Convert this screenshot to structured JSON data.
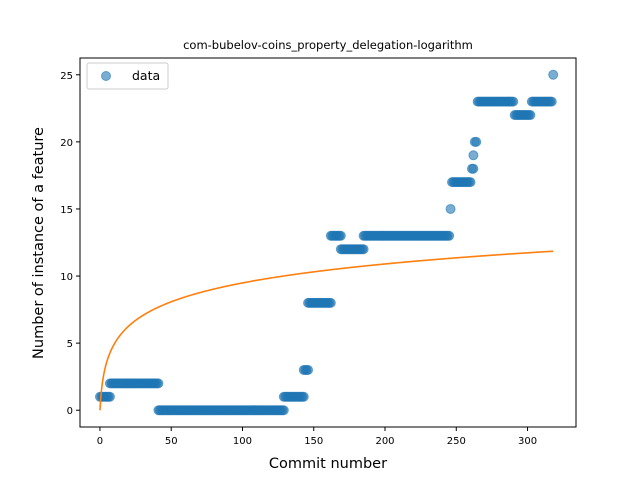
{
  "chart_data": {
    "type": "scatter",
    "title": "com-bubelov-coins_property_delegation-logarithm",
    "xlabel": "Commit number",
    "ylabel": "Number of instance of a feature",
    "xlim": [
      -14,
      334
    ],
    "ylim": [
      -1.25,
      26.25
    ],
    "xticks": [
      0,
      50,
      100,
      150,
      200,
      250,
      300
    ],
    "yticks": [
      0,
      5,
      10,
      15,
      20,
      25
    ],
    "grid": false,
    "legend_position": "top-left",
    "legend": [
      "data"
    ],
    "series": [
      {
        "name": "data",
        "kind": "scatter",
        "color": "#1f77b4",
        "segments": [
          {
            "x_start": 0,
            "x_end": 7,
            "y": 1
          },
          {
            "x_start": 7,
            "x_end": 41,
            "y": 2
          },
          {
            "x_start": 41,
            "x_end": 129,
            "y": 0
          },
          {
            "x_start": 129,
            "x_end": 143,
            "y": 1
          },
          {
            "x_start": 143,
            "x_end": 146,
            "y": 3
          },
          {
            "x_start": 146,
            "x_end": 162,
            "y": 8
          },
          {
            "x_start": 162,
            "x_end": 169,
            "y": 13
          },
          {
            "x_start": 169,
            "x_end": 185,
            "y": 12
          },
          {
            "x_start": 185,
            "x_end": 245,
            "y": 13
          },
          {
            "x_start": 246,
            "x_end": 246,
            "y": 15
          },
          {
            "x_start": 247,
            "x_end": 260,
            "y": 17
          },
          {
            "x_start": 261,
            "x_end": 262,
            "y": 18
          },
          {
            "x_start": 262,
            "x_end": 262,
            "y": 19
          },
          {
            "x_start": 263,
            "x_end": 264,
            "y": 20
          },
          {
            "x_start": 265,
            "x_end": 290,
            "y": 23
          },
          {
            "x_start": 291,
            "x_end": 302,
            "y": 22
          },
          {
            "x_start": 303,
            "x_end": 317,
            "y": 23
          },
          {
            "x_start": 318,
            "x_end": 318,
            "y": 25
          }
        ]
      },
      {
        "kind": "line",
        "color": "#ff7f0e",
        "x_max": 318,
        "endpoint": {
          "x": 318,
          "y": 11.85
        }
      }
    ]
  }
}
